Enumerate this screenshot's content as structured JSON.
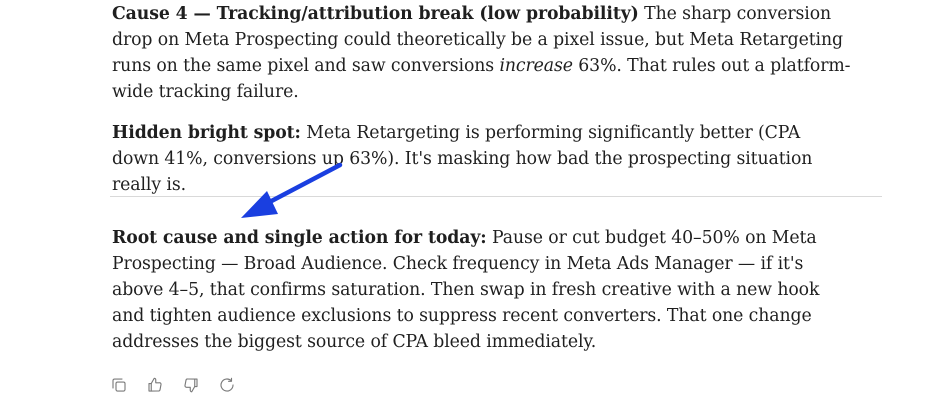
{
  "message": {
    "cause4": {
      "label": "Cause 4 — Tracking/attribution break (low probability)",
      "text_before": " The sharp conversion drop on Meta Prospecting could theoretically be a pixel issue, but Meta Retargeting runs on the same pixel and saw conversions ",
      "emphasis": "increase",
      "text_after": " 63%. That rules out a platform-wide tracking failure."
    },
    "bright_spot": {
      "label": "Hidden bright spot:",
      "text": " Meta Retargeting is performing significantly better (CPA down 41%, conversions up 63%). It's masking how bad the prospecting situation really is."
    },
    "root_cause": {
      "label": "Root cause and single action for today:",
      "text": " Pause or cut budget 40–50% on Meta Prospecting — Broad Audience. Check frequency in Meta Ads Manager — if it's above 4–5, that confirms saturation. Then swap in fresh creative with a new hook and tighten audience exclusions to suppress recent converters. That one change addresses the biggest source of CPA bleed immediately."
    }
  },
  "annotation": {
    "arrow_color": "#1a3fe0"
  },
  "actions": {
    "copy": "copy-icon",
    "thumbs_up": "thumbs-up-icon",
    "thumbs_down": "thumbs-down-icon",
    "retry": "retry-icon"
  }
}
